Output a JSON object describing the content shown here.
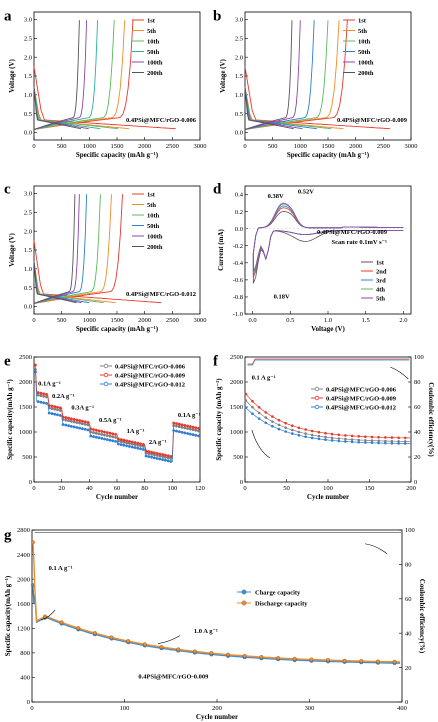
{
  "panels": [
    {
      "id": "a",
      "letter": "a",
      "type": "line",
      "xlabel": "Specific capacity (mAh g⁻¹)",
      "ylabel": "Voltage (V)",
      "xlim": [
        0,
        3000
      ],
      "ylim": [
        -0.2,
        3.2
      ],
      "xticks": [
        0,
        500,
        1000,
        1500,
        2000,
        2500,
        3000
      ],
      "yticks": [
        0.0,
        0.5,
        1.0,
        1.5,
        2.0,
        2.5,
        3.0
      ],
      "legend": [
        "1st",
        "5th",
        "10th",
        "50th",
        "100th",
        "200th"
      ],
      "colors": [
        "#e8382e",
        "#f08c2a",
        "#5cb85c",
        "#2ab0a0",
        "#8e44ad",
        "#555555"
      ],
      "annotation": "0.4PSi@MFC/rGO-0.006",
      "series": [
        {
          "name": "1st",
          "charge_cap": 1790,
          "discharge_cap": 2560
        },
        {
          "name": "5th",
          "charge_cap": 1640,
          "discharge_cap": 1720
        },
        {
          "name": "10th",
          "charge_cap": 1450,
          "discharge_cap": 1520
        },
        {
          "name": "50th",
          "charge_cap": 1150,
          "discharge_cap": 1200
        },
        {
          "name": "100th",
          "charge_cap": 950,
          "discharge_cap": 990
        },
        {
          "name": "200th",
          "charge_cap": 820,
          "discharge_cap": 850
        }
      ]
    },
    {
      "id": "b",
      "letter": "b",
      "type": "line",
      "xlabel": "Specific capacity (mAh g⁻¹)",
      "ylabel": "Voltage (V)",
      "xlim": [
        0,
        3000
      ],
      "ylim": [
        -0.2,
        3.2
      ],
      "xticks": [
        0,
        500,
        1000,
        1500,
        2000,
        2500,
        3000
      ],
      "yticks": [
        0.0,
        0.5,
        1.0,
        1.5,
        2.0,
        2.5,
        3.0
      ],
      "legend": [
        "1st",
        "5th",
        "10th",
        "50th",
        "100th",
        "200th"
      ],
      "colors": [
        "#e8382e",
        "#f08c2a",
        "#5cb85c",
        "#2d7fd3",
        "#8e44ad",
        "#555555"
      ],
      "annotation": "0.4PSi@MFC/rGO-0.009",
      "series": [
        {
          "name": "1st",
          "charge_cap": 1850,
          "discharge_cap": 2620
        },
        {
          "name": "5th",
          "charge_cap": 1700,
          "discharge_cap": 1780
        },
        {
          "name": "10th",
          "charge_cap": 1500,
          "discharge_cap": 1560
        },
        {
          "name": "50th",
          "charge_cap": 1250,
          "discharge_cap": 1300
        },
        {
          "name": "100th",
          "charge_cap": 1000,
          "discharge_cap": 1040
        },
        {
          "name": "200th",
          "charge_cap": 850,
          "discharge_cap": 880
        }
      ]
    },
    {
      "id": "c",
      "letter": "c",
      "type": "line",
      "xlabel": "Specific capacity (mAh g⁻¹)",
      "ylabel": "Voltage (V)",
      "xlim": [
        0,
        3000
      ],
      "ylim": [
        -0.2,
        3.2
      ],
      "xticks": [
        0,
        500,
        1000,
        1500,
        2000,
        2500,
        3000
      ],
      "yticks": [
        0.0,
        0.5,
        1.0,
        1.5,
        2.0,
        2.5,
        3.0
      ],
      "legend": [
        "1st",
        "5th",
        "10th",
        "50th",
        "100th",
        "200th"
      ],
      "colors": [
        "#e8382e",
        "#f08c2a",
        "#5cb85c",
        "#2d7fd3",
        "#8e44ad",
        "#555555"
      ],
      "annotation": "0.4PSi@MFC/rGO-0.012",
      "series": [
        {
          "name": "1st",
          "charge_cap": 1600,
          "discharge_cap": 2300
        },
        {
          "name": "5th",
          "charge_cap": 1400,
          "discharge_cap": 1480
        },
        {
          "name": "10th",
          "charge_cap": 1200,
          "discharge_cap": 1260
        },
        {
          "name": "50th",
          "charge_cap": 950,
          "discharge_cap": 1000
        },
        {
          "name": "100th",
          "charge_cap": 820,
          "discharge_cap": 860
        },
        {
          "name": "200th",
          "charge_cap": 740,
          "discharge_cap": 770
        }
      ]
    },
    {
      "id": "d",
      "letter": "d",
      "type": "line",
      "xlabel": "Voltage (V)",
      "ylabel": "Current (mA)",
      "xlim": [
        -0.1,
        2.1
      ],
      "ylim": [
        -1.0,
        0.5
      ],
      "xticks": [
        0.0,
        0.5,
        1.0,
        1.5,
        2.0
      ],
      "yticks": [
        -1.0,
        -0.8,
        -0.6,
        -0.4,
        -0.2,
        0.0,
        0.2,
        0.4
      ],
      "legend": [
        "1st",
        "2nd",
        "3rd",
        "4th",
        "5th"
      ],
      "colors": [
        "#555555",
        "#e8382e",
        "#2d7fd3",
        "#5cb85c",
        "#8e44ad"
      ],
      "annotation": "0.4PSi@MFC/rGO-0.009",
      "annotation2": "Scan rate 0.1mV s⁻¹",
      "peaks": [
        "0.38V",
        "0.52V",
        "0.18V"
      ],
      "series": [
        {
          "name": "1st",
          "cathodic_min": -0.62,
          "anodic_max": 0.22
        },
        {
          "name": "2nd",
          "cathodic_min": -0.55,
          "anodic_max": 0.26
        },
        {
          "name": "3rd",
          "cathodic_min": -0.52,
          "anodic_max": 0.28
        },
        {
          "name": "4th",
          "cathodic_min": -0.5,
          "anodic_max": 0.3
        },
        {
          "name": "5th",
          "cathodic_min": -0.48,
          "anodic_max": 0.31
        }
      ]
    },
    {
      "id": "e",
      "letter": "e",
      "type": "scatter",
      "xlabel": "Cycle number",
      "ylabel": "Specific capacity(mAh g⁻¹)",
      "xlim": [
        0,
        120
      ],
      "ylim": [
        0,
        2500
      ],
      "xticks": [
        0,
        20,
        40,
        60,
        80,
        100,
        120
      ],
      "yticks": [
        0,
        500,
        1000,
        1500,
        2000,
        2500
      ],
      "legend": [
        "0.4PSi@MFC/rGO-0.006",
        "0.4PSi@MFC/rGO-0.009",
        "0.4PSi@MFC/rGO-0.012"
      ],
      "colors": [
        "#808080",
        "#e8382e",
        "#2d7fd3"
      ],
      "rates": [
        "0.1A g⁻¹",
        "0.2A g⁻¹",
        "0.3A g⁻¹",
        "0.5A g⁻¹",
        "1A g⁻¹",
        "2A g⁻¹",
        "0.1A g⁻¹"
      ],
      "rate_ranges": [
        [
          1,
          10
        ],
        [
          11,
          20
        ],
        [
          21,
          40
        ],
        [
          41,
          60
        ],
        [
          61,
          80
        ],
        [
          81,
          100
        ],
        [
          101,
          120
        ]
      ],
      "series": [
        {
          "name": "0.4PSi@MFC/rGO-0.006",
          "levels": [
            1750,
            1480,
            1250,
            1000,
            820,
            580,
            1130
          ]
        },
        {
          "name": "0.4PSi@MFC/rGO-0.009",
          "levels": [
            1800,
            1530,
            1300,
            1060,
            860,
            620,
            1180
          ]
        },
        {
          "name": "0.4PSi@MFC/rGO-0.012",
          "levels": [
            1620,
            1380,
            1150,
            920,
            760,
            520,
            1030
          ]
        }
      ]
    },
    {
      "id": "f",
      "letter": "f",
      "type": "scatter",
      "xlabel": "Cycle number",
      "ylabel": "Specific capacity (mAh g⁻¹)",
      "ylabel2": "Coulombic efficiency(%)",
      "xlim": [
        0,
        200
      ],
      "ylim": [
        0,
        2500
      ],
      "y2lim": [
        0,
        100
      ],
      "xticks": [
        0,
        50,
        100,
        150,
        200
      ],
      "yticks": [
        0,
        500,
        1000,
        1500,
        2000,
        2500
      ],
      "y2ticks": [
        0,
        20,
        40,
        60,
        80,
        100
      ],
      "legend": [
        "0.4PSi@MFC/rGO-0.006",
        "0.4PSi@MFC/rGO-0.009",
        "0.4PSi@MFC/rGO-0.012"
      ],
      "colors": [
        "#808080",
        "#e8382e",
        "#2d7fd3"
      ],
      "annotation": "0.1 A g⁻¹",
      "series": [
        {
          "name": "0.4PSi@MFC/rGO-0.006",
          "start": 1650,
          "end": 800,
          "ce": 98
        },
        {
          "name": "0.4PSi@MFC/rGO-0.009",
          "start": 1780,
          "end": 870,
          "ce": 98.5
        },
        {
          "name": "0.4PSi@MFC/rGO-0.012",
          "start": 1500,
          "end": 760,
          "ce": 97.5
        }
      ]
    },
    {
      "id": "g",
      "letter": "g",
      "type": "scatter",
      "xlabel": "Cycle number",
      "ylabel": "Specific capacity(mAh g⁻¹)",
      "ylabel2": "Coulombic efficiency(%)",
      "xlim": [
        0,
        400
      ],
      "ylim": [
        0,
        2800
      ],
      "y2lim": [
        0,
        100
      ],
      "xticks": [
        0,
        100,
        200,
        300,
        400
      ],
      "yticks": [
        0,
        400,
        800,
        1200,
        1600,
        2000,
        2400,
        2800
      ],
      "y2ticks": [
        0,
        20,
        40,
        60,
        80,
        100
      ],
      "legend": [
        "Charge capacity",
        "Discharge capacity"
      ],
      "colors": [
        "#3a8fd8",
        "#f08c2a"
      ],
      "annotations": [
        "0.1 A g⁻¹",
        "1.0 A g⁻¹"
      ],
      "sample": "0.4PSi@MFC/rGO-0.009",
      "series": [
        {
          "name": "Charge capacity",
          "initial": 1900,
          "peak": 1380,
          "end": 600
        },
        {
          "name": "Discharge capacity",
          "initial": 2600,
          "peak": 1400,
          "end": 620
        }
      ]
    }
  ]
}
